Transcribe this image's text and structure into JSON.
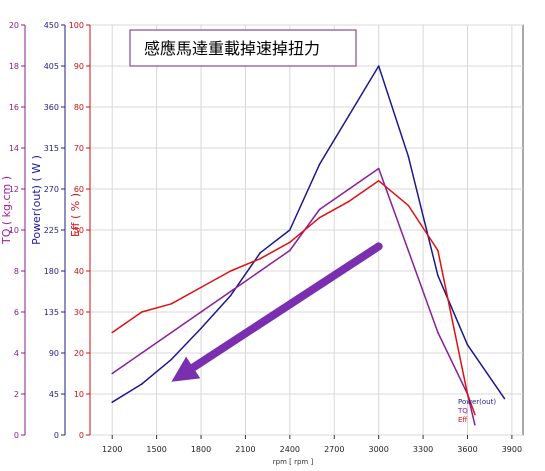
{
  "chart_data": {
    "type": "line",
    "title": "感應馬達重載掉速掉扭力",
    "xlabel": "rpm [ rpm ]",
    "x_ticks": [
      1200,
      1500,
      1800,
      2100,
      2400,
      2700,
      3000,
      3300,
      3600,
      3900
    ],
    "xlim": [
      1050,
      3975
    ],
    "axes": {
      "tq": {
        "label": "TQ ( kg.cm )",
        "ticks": [
          0,
          2,
          4,
          6,
          8,
          10,
          12,
          14,
          16,
          18,
          20
        ],
        "ylim": [
          0,
          20
        ]
      },
      "power": {
        "label": "Power(out) ( W )",
        "ticks": [
          0,
          45,
          90,
          135,
          180,
          225,
          270,
          315,
          360,
          405,
          450
        ],
        "ylim": [
          0,
          450
        ]
      },
      "eff": {
        "label": "Eff ( % )",
        "ticks": [
          0,
          10,
          20,
          30,
          40,
          50,
          60,
          70,
          80,
          90,
          100
        ],
        "ylim": [
          0,
          100
        ]
      }
    },
    "grid": true,
    "series": [
      {
        "name": "Power(out)",
        "axis": "power",
        "color": "#1a1a8c",
        "x": [
          1200,
          1400,
          1600,
          1800,
          2000,
          2200,
          2400,
          2600,
          2800,
          3000,
          3200,
          3400,
          3600,
          3850
        ],
        "y": [
          36,
          56,
          83,
          117,
          153,
          200,
          225,
          297,
          351,
          405,
          306,
          175,
          99,
          40
        ]
      },
      {
        "name": "TQ",
        "axis": "tq",
        "color": "#8a1f9a",
        "x": [
          1200,
          1400,
          1600,
          1800,
          2000,
          2200,
          2400,
          2600,
          2800,
          3000,
          3200,
          3400,
          3600,
          3650
        ],
        "y": [
          3,
          4,
          5,
          6,
          7,
          8,
          9,
          11,
          12,
          13,
          9,
          5,
          2,
          0.5
        ]
      },
      {
        "name": "Eff",
        "axis": "eff",
        "color": "#e01010",
        "x": [
          1200,
          1400,
          1600,
          1800,
          2000,
          2200,
          2400,
          2600,
          2800,
          3000,
          3200,
          3400,
          3600,
          3650
        ],
        "y": [
          25,
          30,
          32,
          36,
          40,
          43,
          47,
          53,
          57,
          62,
          56,
          45,
          10,
          5
        ]
      }
    ],
    "legend": {
      "placement": "bottom-right",
      "entries": [
        "Power(out)",
        "TQ",
        "Eff"
      ]
    },
    "annotation": {
      "type": "arrow",
      "color": "#7a2fb0",
      "from": [
        3000,
        46
      ],
      "to": [
        1600,
        13
      ],
      "axis": "eff"
    }
  }
}
